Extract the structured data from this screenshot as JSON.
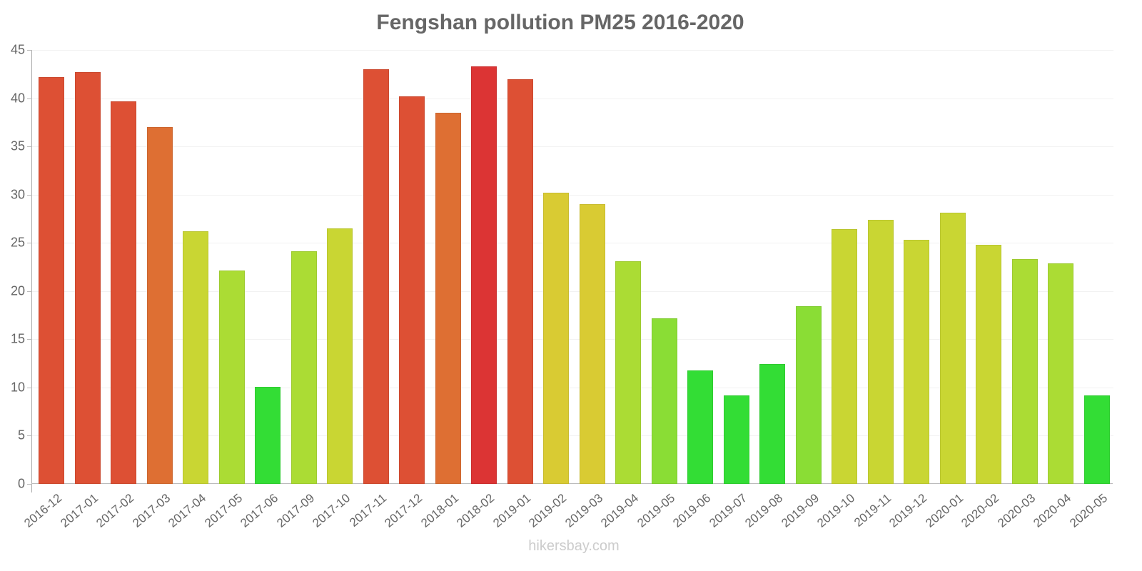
{
  "chart_data": {
    "type": "bar",
    "title": "Fengshan pollution PM25 2016-2020",
    "xlabel": "",
    "ylabel": "",
    "ylim": [
      0,
      45
    ],
    "yticks": [
      0,
      5,
      10,
      15,
      20,
      25,
      30,
      35,
      40,
      45
    ],
    "grid": true,
    "legend": null,
    "categories": [
      "2016-12",
      "2017-01",
      "2017-02",
      "2017-03",
      "2017-04",
      "2017-05",
      "2017-06",
      "2017-09",
      "2017-10",
      "2017-11",
      "2017-12",
      "2018-01",
      "2018-02",
      "2019-01",
      "2019-02",
      "2019-03",
      "2019-04",
      "2019-05",
      "2019-06",
      "2019-07",
      "2019-08",
      "2019-09",
      "2019-10",
      "2019-11",
      "2019-12",
      "2020-01",
      "2020-02",
      "2020-03",
      "2020-04",
      "2020-05"
    ],
    "values": [
      42.2,
      42.7,
      39.7,
      37.0,
      26.2,
      22.1,
      10.1,
      24.1,
      26.5,
      43.0,
      40.2,
      38.5,
      43.3,
      42.0,
      30.2,
      29.0,
      23.1,
      17.2,
      11.8,
      9.2,
      12.4,
      18.4,
      26.4,
      27.4,
      25.3,
      28.1,
      24.8,
      23.3,
      22.9,
      9.2
    ],
    "colors": [
      "#DD5034",
      "#DD5034",
      "#DD5034",
      "#DE6F33",
      "#C9D633",
      "#ABDC34",
      "#33DD35",
      "#ABDC34",
      "#C9D633",
      "#DD5034",
      "#DD5034",
      "#DE6F33",
      "#DC3434",
      "#DD5034",
      "#D9CB33",
      "#D9CB33",
      "#ABDC34",
      "#8ADD35",
      "#33DD35",
      "#33DD35",
      "#33DD35",
      "#8ADD35",
      "#C9D633",
      "#C9D633",
      "#C9D633",
      "#C9D633",
      "#C9D633",
      "#ABDC34",
      "#ABDC34",
      "#33DD35"
    ]
  },
  "watermark": "hikersbay.com"
}
